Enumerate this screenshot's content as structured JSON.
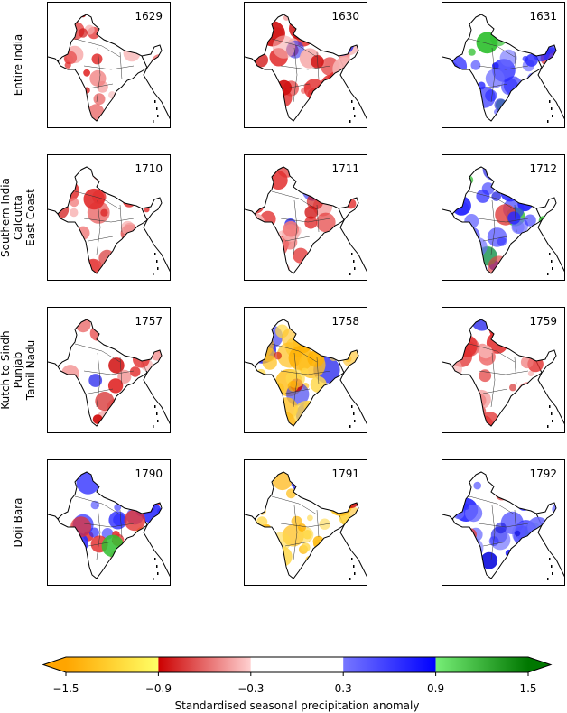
{
  "chart_data": {
    "type": "heatmap",
    "description_type": "small-multiple choropleth maps",
    "rows": [
      {
        "label": "Entire India",
        "panels": [
          {
            "year": "1629",
            "dominant": "dry",
            "intensity": 0.35
          },
          {
            "year": "1630",
            "dominant": "dry",
            "intensity": 0.8
          },
          {
            "year": "1631",
            "dominant": "wet",
            "intensity": 0.6
          }
        ]
      },
      {
        "label": "Southern India\nCalcutta\nEast Coast",
        "panels": [
          {
            "year": "1710",
            "dominant": "dry",
            "intensity": 0.55
          },
          {
            "year": "1711",
            "dominant": "dry",
            "intensity": 0.45
          },
          {
            "year": "1712",
            "dominant": "wet",
            "intensity": 0.55
          }
        ]
      },
      {
        "label": "Kutch to Sindh\nPunjab\nTamil Nadu",
        "panels": [
          {
            "year": "1757",
            "dominant": "dry",
            "intensity": 0.4
          },
          {
            "year": "1758",
            "dominant": "very-dry",
            "intensity": 0.9
          },
          {
            "year": "1759",
            "dominant": "dry",
            "intensity": 0.55
          }
        ]
      },
      {
        "label": "Doji Bara",
        "panels": [
          {
            "year": "1790",
            "dominant": "mixed",
            "intensity": 0.6
          },
          {
            "year": "1791",
            "dominant": "very-dry",
            "intensity": 0.6
          },
          {
            "year": "1792",
            "dominant": "wet",
            "intensity": 0.65
          }
        ]
      }
    ],
    "colorbar": {
      "label": "Standardised seasonal precipitation anomaly",
      "ticks": [
        "−1.5",
        "−0.9",
        "−0.3",
        "0.3",
        "0.9",
        "1.5"
      ],
      "tick_values": [
        -1.5,
        -0.9,
        -0.3,
        0.3,
        0.9,
        1.5
      ],
      "extend": "both",
      "segments": [
        {
          "from": -1.5,
          "to": -0.9,
          "start": "#ffa500",
          "end": "#ffff66"
        },
        {
          "from": -0.9,
          "to": -0.3,
          "start": "#cc0000",
          "end": "#ffd0d0"
        },
        {
          "from": -0.3,
          "to": 0.3,
          "start": "#ffffff",
          "end": "#ffffff"
        },
        {
          "from": 0.3,
          "to": 0.9,
          "start": "#7777ff",
          "end": "#0000ff"
        },
        {
          "from": 0.9,
          "to": 1.5,
          "start": "#77ee77",
          "end": "#007700"
        }
      ],
      "under_color": "#ffa500",
      "over_color": "#007700"
    }
  }
}
